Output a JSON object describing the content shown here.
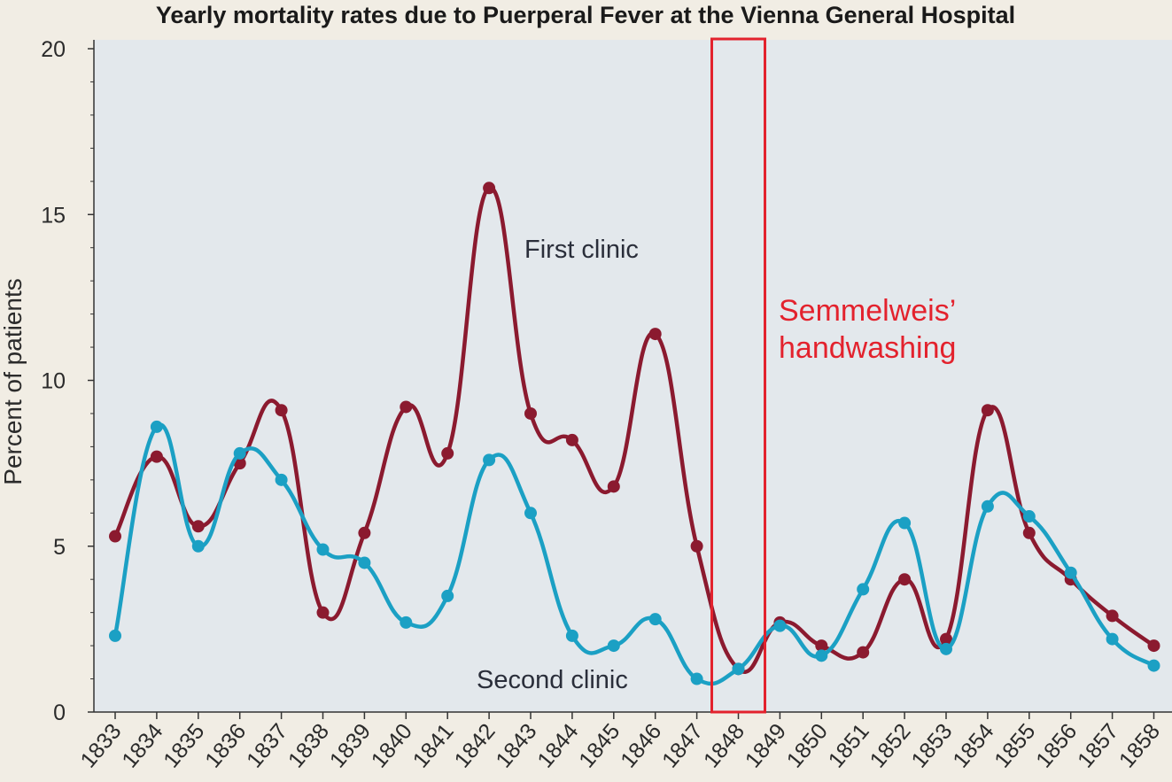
{
  "chart_data": {
    "type": "line",
    "title": "Yearly mortality rates due to Puerperal Fever at the Vienna General Hospital",
    "xlabel": "",
    "ylabel": "Percent of patients",
    "ylim": [
      0,
      20
    ],
    "yticks": [
      0,
      5,
      10,
      15,
      20
    ],
    "grid": false,
    "categories": [
      "1833",
      "1834",
      "1835",
      "1836",
      "1837",
      "1838",
      "1839",
      "1840",
      "1841",
      "1842",
      "1843",
      "1844",
      "1845",
      "1846",
      "1847",
      "1848",
      "1849",
      "1850",
      "1851",
      "1852",
      "1853",
      "1854",
      "1855",
      "1856",
      "1857",
      "1858"
    ],
    "series": [
      {
        "name": "First clinic",
        "color": "#8b1a2f",
        "values": [
          5.3,
          7.7,
          5.6,
          7.5,
          9.1,
          3.0,
          5.4,
          9.2,
          7.8,
          15.8,
          9.0,
          8.2,
          6.8,
          11.4,
          5.0,
          1.3,
          2.7,
          2.0,
          1.8,
          4.0,
          2.2,
          9.1,
          5.4,
          4.0,
          2.9,
          2.0
        ]
      },
      {
        "name": "Second clinic",
        "color": "#1ba0c4",
        "values": [
          2.3,
          8.6,
          5.0,
          7.8,
          7.0,
          4.9,
          4.5,
          2.7,
          3.5,
          7.6,
          6.0,
          2.3,
          2.0,
          2.8,
          1.0,
          1.3,
          2.6,
          1.7,
          3.7,
          5.7,
          1.9,
          6.2,
          5.9,
          4.2,
          2.2,
          1.4
        ]
      }
    ],
    "annotations": {
      "first_clinic_label": "First clinic",
      "second_clinic_label": "Second clinic",
      "highlight_line1": "Semmelweis’",
      "highlight_line2": "handwashing",
      "highlight_year": "1848",
      "highlight_color": "#e3222d"
    },
    "plot_bg": "#e3e8ec"
  }
}
